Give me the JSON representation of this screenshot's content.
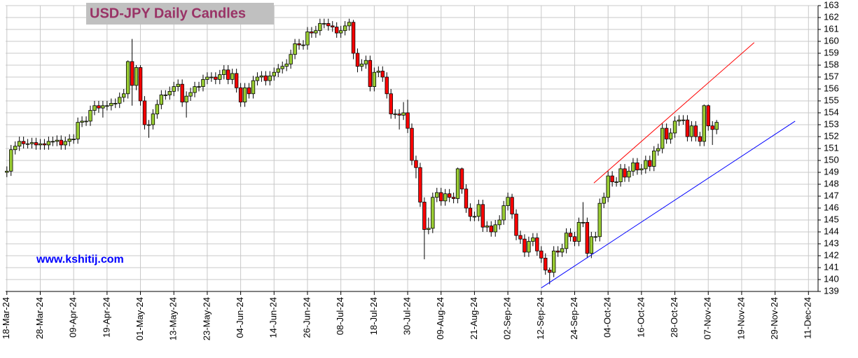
{
  "chart_data": {
    "type": "candlestick",
    "title": "USD-JPY Daily Candles",
    "watermark": "www.kshitij.com",
    "up_color": "#99cc33",
    "down_color": "#ff0000",
    "grid": true,
    "xlim": [
      -0.3,
      194.3
    ],
    "ylim": [
      139,
      163
    ],
    "yticks": [
      139,
      140,
      141,
      142,
      143,
      144,
      145,
      146,
      147,
      148,
      149,
      150,
      151,
      152,
      153,
      154,
      155,
      156,
      157,
      158,
      159,
      160,
      161,
      162,
      163
    ],
    "xticks": [
      {
        "value": 0,
        "label": "18-Mar-24"
      },
      {
        "value": 8,
        "label": "28-Mar-24"
      },
      {
        "value": 16,
        "label": "09-Apr-24"
      },
      {
        "value": 24,
        "label": "19-Apr-24"
      },
      {
        "value": 32,
        "label": "01-May-24"
      },
      {
        "value": 40,
        "label": "13-May-24"
      },
      {
        "value": 48,
        "label": "23-May-24"
      },
      {
        "value": 56,
        "label": "04-Jun-24"
      },
      {
        "value": 64,
        "label": "14-Jun-24"
      },
      {
        "value": 72,
        "label": "26-Jun-24"
      },
      {
        "value": 80,
        "label": "08-Jul-24"
      },
      {
        "value": 88,
        "label": "18-Jul-24"
      },
      {
        "value": 96,
        "label": "30-Jul-24"
      },
      {
        "value": 104,
        "label": "09-Aug-24"
      },
      {
        "value": 112,
        "label": "21-Aug-24"
      },
      {
        "value": 120,
        "label": "02-Sep-24"
      },
      {
        "value": 128,
        "label": "12-Sep-24"
      },
      {
        "value": 136,
        "label": "24-Sep-24"
      },
      {
        "value": 144,
        "label": "04-Oct-24"
      },
      {
        "value": 152,
        "label": "16-Oct-24"
      },
      {
        "value": 160,
        "label": "28-Oct-24"
      },
      {
        "value": 168,
        "label": "07-Nov-24"
      },
      {
        "value": 176,
        "label": "19-Nov-24"
      },
      {
        "value": 184,
        "label": "29-Nov-24"
      },
      {
        "value": 192,
        "label": "11-Dec-24"
      }
    ],
    "trendlines": [
      {
        "color": "#ff0000",
        "x": [
          140.6,
          179.0
        ],
        "y": [
          148.1,
          159.9
        ]
      },
      {
        "color": "#0000ff",
        "x": [
          128.0,
          188.8
        ],
        "y": [
          139.3,
          153.3
        ]
      }
    ],
    "ohlc": [
      [
        149.0,
        149.5,
        148.6,
        149.1
      ],
      [
        149.1,
        151.3,
        148.7,
        150.9
      ],
      [
        150.9,
        151.6,
        150.5,
        151.2
      ],
      [
        151.2,
        152.0,
        150.8,
        151.6
      ],
      [
        151.6,
        152.0,
        151.0,
        151.4
      ],
      [
        151.4,
        151.8,
        151.0,
        151.4
      ],
      [
        151.4,
        151.9,
        151.0,
        151.5
      ],
      [
        151.5,
        151.9,
        150.9,
        151.3
      ],
      [
        151.3,
        151.8,
        150.9,
        151.4
      ],
      [
        151.4,
        151.8,
        150.9,
        151.3
      ],
      [
        151.3,
        152.0,
        150.9,
        151.6
      ],
      [
        151.6,
        152.0,
        151.2,
        151.6
      ],
      [
        151.6,
        152.1,
        151.2,
        151.7
      ],
      [
        151.7,
        152.1,
        150.9,
        151.3
      ],
      [
        151.3,
        152.0,
        150.9,
        151.6
      ],
      [
        151.6,
        152.2,
        151.2,
        151.8
      ],
      [
        151.8,
        152.2,
        151.4,
        151.8
      ],
      [
        151.8,
        153.6,
        151.4,
        153.2
      ],
      [
        153.2,
        153.7,
        152.8,
        153.3
      ],
      [
        153.3,
        153.7,
        152.9,
        153.3
      ],
      [
        153.3,
        154.6,
        152.9,
        154.2
      ],
      [
        154.2,
        155.0,
        153.8,
        154.6
      ],
      [
        154.6,
        155.0,
        154.0,
        154.4
      ],
      [
        154.4,
        155.0,
        153.6,
        154.6
      ],
      [
        154.6,
        155.0,
        154.2,
        154.6
      ],
      [
        154.6,
        155.2,
        154.2,
        154.8
      ],
      [
        154.8,
        155.2,
        154.4,
        154.8
      ],
      [
        154.8,
        155.7,
        154.4,
        155.3
      ],
      [
        155.3,
        156.0,
        154.9,
        155.6
      ],
      [
        155.6,
        158.4,
        155.2,
        158.3
      ],
      [
        158.3,
        160.2,
        154.6,
        156.3
      ],
      [
        156.3,
        158.0,
        155.9,
        157.8
      ],
      [
        157.8,
        158.0,
        154.6,
        155.0
      ],
      [
        155.0,
        155.4,
        152.6,
        153.0
      ],
      [
        153.0,
        153.4,
        151.9,
        153.0
      ],
      [
        153.0,
        154.3,
        152.6,
        153.9
      ],
      [
        153.9,
        155.1,
        153.5,
        154.7
      ],
      [
        154.7,
        155.9,
        154.3,
        155.5
      ],
      [
        155.5,
        155.9,
        155.1,
        155.5
      ],
      [
        155.5,
        156.2,
        155.1,
        155.8
      ],
      [
        155.8,
        156.6,
        155.4,
        156.2
      ],
      [
        156.2,
        156.8,
        155.8,
        156.4
      ],
      [
        156.4,
        156.8,
        154.5,
        154.9
      ],
      [
        154.9,
        155.8,
        153.6,
        155.4
      ],
      [
        155.4,
        156.1,
        155.0,
        155.7
      ],
      [
        155.7,
        156.6,
        155.3,
        156.2
      ],
      [
        156.2,
        156.6,
        155.8,
        156.2
      ],
      [
        156.2,
        157.2,
        155.8,
        156.8
      ],
      [
        156.8,
        157.4,
        156.4,
        157.0
      ],
      [
        157.0,
        157.4,
        156.6,
        157.0
      ],
      [
        157.0,
        157.4,
        156.4,
        156.8
      ],
      [
        156.8,
        157.6,
        156.4,
        157.2
      ],
      [
        157.2,
        158.0,
        156.8,
        157.6
      ],
      [
        157.6,
        158.0,
        156.4,
        156.8
      ],
      [
        156.8,
        157.7,
        156.4,
        157.3
      ],
      [
        157.3,
        157.7,
        155.7,
        156.1
      ],
      [
        156.1,
        156.5,
        154.5,
        154.9
      ],
      [
        154.9,
        156.5,
        154.5,
        156.1
      ],
      [
        156.1,
        156.5,
        155.2,
        155.6
      ],
      [
        155.6,
        157.1,
        155.2,
        156.7
      ],
      [
        156.7,
        157.4,
        156.3,
        157.0
      ],
      [
        157.0,
        157.5,
        156.6,
        157.1
      ],
      [
        157.1,
        157.5,
        156.3,
        156.7
      ],
      [
        156.7,
        157.5,
        156.3,
        157.1
      ],
      [
        157.1,
        157.8,
        156.7,
        157.4
      ],
      [
        157.4,
        158.1,
        157.0,
        157.7
      ],
      [
        157.7,
        158.3,
        157.3,
        157.9
      ],
      [
        157.9,
        158.5,
        157.5,
        158.1
      ],
      [
        158.1,
        159.3,
        157.7,
        158.9
      ],
      [
        158.9,
        160.2,
        158.5,
        159.8
      ],
      [
        159.8,
        160.2,
        159.3,
        159.7
      ],
      [
        159.7,
        160.1,
        159.3,
        159.7
      ],
      [
        159.7,
        161.2,
        159.3,
        160.8
      ],
      [
        160.8,
        161.2,
        160.3,
        160.7
      ],
      [
        160.7,
        161.3,
        160.3,
        160.9
      ],
      [
        160.9,
        161.9,
        160.5,
        161.5
      ],
      [
        161.5,
        161.9,
        161.1,
        161.5
      ],
      [
        161.5,
        161.9,
        160.9,
        161.3
      ],
      [
        161.3,
        161.7,
        160.8,
        161.2
      ],
      [
        161.2,
        161.6,
        160.3,
        160.7
      ],
      [
        160.7,
        161.3,
        160.3,
        160.9
      ],
      [
        160.9,
        161.7,
        160.5,
        161.3
      ],
      [
        161.3,
        161.9,
        160.9,
        161.6
      ],
      [
        161.6,
        161.8,
        158.5,
        159.0
      ],
      [
        159.0,
        159.4,
        157.4,
        157.9
      ],
      [
        157.9,
        158.5,
        157.5,
        158.1
      ],
      [
        158.1,
        158.8,
        157.7,
        158.4
      ],
      [
        158.4,
        158.8,
        155.8,
        156.2
      ],
      [
        156.2,
        157.8,
        155.8,
        157.4
      ],
      [
        157.4,
        157.9,
        157.0,
        157.5
      ],
      [
        157.5,
        157.9,
        156.6,
        157.0
      ],
      [
        157.0,
        157.4,
        155.2,
        155.6
      ],
      [
        155.6,
        156.0,
        153.5,
        153.9
      ],
      [
        153.9,
        154.3,
        153.5,
        153.9
      ],
      [
        153.9,
        154.3,
        152.6,
        153.8
      ],
      [
        153.8,
        154.9,
        153.4,
        154.0
      ],
      [
        154.0,
        155.1,
        152.3,
        152.7
      ],
      [
        152.7,
        153.1,
        149.6,
        150.0
      ],
      [
        150.0,
        150.4,
        148.5,
        149.4
      ],
      [
        149.4,
        149.8,
        146.1,
        146.5
      ],
      [
        146.5,
        146.9,
        141.7,
        144.2
      ],
      [
        144.2,
        145.2,
        143.8,
        144.3
      ],
      [
        144.3,
        147.3,
        143.9,
        146.9
      ],
      [
        146.9,
        147.7,
        146.5,
        147.3
      ],
      [
        147.3,
        147.7,
        146.2,
        146.6
      ],
      [
        146.6,
        147.6,
        146.2,
        147.2
      ],
      [
        147.2,
        147.6,
        146.5,
        146.9
      ],
      [
        146.9,
        147.3,
        146.4,
        146.8
      ],
      [
        146.8,
        149.4,
        146.4,
        149.3
      ],
      [
        149.3,
        149.4,
        147.2,
        147.6
      ],
      [
        147.6,
        148.0,
        145.6,
        146.0
      ],
      [
        146.0,
        146.4,
        144.9,
        145.3
      ],
      [
        145.3,
        145.7,
        144.9,
        145.3
      ],
      [
        145.3,
        146.7,
        144.9,
        146.3
      ],
      [
        146.3,
        146.7,
        144.0,
        144.4
      ],
      [
        144.4,
        144.9,
        144.0,
        144.5
      ],
      [
        144.5,
        144.9,
        143.6,
        144.0
      ],
      [
        144.0,
        145.0,
        143.6,
        144.6
      ],
      [
        144.6,
        145.4,
        144.2,
        145.0
      ],
      [
        145.0,
        146.6,
        144.6,
        146.2
      ],
      [
        146.2,
        147.3,
        145.8,
        146.9
      ],
      [
        146.9,
        147.2,
        145.1,
        145.5
      ],
      [
        145.5,
        145.9,
        143.3,
        143.7
      ],
      [
        143.7,
        144.1,
        143.0,
        143.4
      ],
      [
        143.4,
        143.8,
        141.9,
        142.3
      ],
      [
        142.3,
        143.6,
        141.9,
        143.2
      ],
      [
        143.2,
        143.9,
        142.8,
        143.5
      ],
      [
        143.5,
        143.9,
        142.0,
        142.4
      ],
      [
        142.4,
        142.8,
        141.4,
        141.8
      ],
      [
        141.8,
        142.2,
        140.4,
        140.8
      ],
      [
        140.8,
        141.0,
        139.6,
        140.6
      ],
      [
        140.6,
        142.8,
        140.2,
        142.4
      ],
      [
        142.4,
        142.8,
        141.9,
        142.3
      ],
      [
        142.3,
        143.0,
        141.9,
        142.6
      ],
      [
        142.6,
        144.3,
        142.2,
        143.9
      ],
      [
        143.9,
        144.3,
        143.2,
        143.6
      ],
      [
        143.6,
        144.0,
        142.8,
        143.2
      ],
      [
        143.2,
        145.2,
        142.8,
        144.8
      ],
      [
        144.8,
        146.5,
        144.4,
        144.8
      ],
      [
        144.8,
        145.2,
        141.8,
        142.2
      ],
      [
        142.2,
        144.0,
        141.8,
        143.6
      ],
      [
        143.6,
        144.0,
        143.2,
        143.6
      ],
      [
        143.6,
        146.8,
        143.2,
        146.4
      ],
      [
        146.4,
        147.3,
        146.0,
        146.9
      ],
      [
        146.9,
        149.1,
        146.5,
        148.7
      ],
      [
        148.7,
        149.1,
        147.8,
        148.2
      ],
      [
        148.2,
        148.6,
        147.8,
        148.2
      ],
      [
        148.2,
        149.7,
        147.8,
        149.3
      ],
      [
        149.3,
        149.7,
        148.2,
        148.6
      ],
      [
        148.6,
        149.5,
        148.2,
        149.1
      ],
      [
        149.1,
        150.2,
        148.7,
        149.8
      ],
      [
        149.8,
        150.2,
        148.8,
        149.2
      ],
      [
        149.2,
        149.7,
        148.8,
        149.3
      ],
      [
        149.3,
        150.4,
        148.9,
        150.0
      ],
      [
        150.0,
        150.4,
        149.1,
        149.5
      ],
      [
        149.5,
        151.2,
        149.1,
        150.8
      ],
      [
        150.8,
        151.4,
        150.4,
        151.0
      ],
      [
        151.0,
        153.1,
        150.6,
        152.7
      ],
      [
        152.7,
        153.1,
        151.4,
        151.8
      ],
      [
        151.8,
        152.7,
        151.4,
        152.3
      ],
      [
        152.3,
        153.7,
        151.9,
        153.3
      ],
      [
        153.3,
        153.8,
        152.9,
        153.4
      ],
      [
        153.4,
        153.8,
        153.0,
        153.4
      ],
      [
        153.4,
        153.8,
        151.6,
        152.0
      ],
      [
        152.0,
        153.3,
        151.6,
        152.9
      ],
      [
        152.9,
        153.3,
        151.6,
        152.0
      ],
      [
        152.0,
        152.4,
        151.2,
        151.6
      ],
      [
        151.6,
        154.7,
        151.2,
        154.6
      ],
      [
        154.6,
        154.7,
        152.5,
        152.9
      ],
      [
        152.9,
        153.3,
        151.3,
        152.6
      ],
      [
        152.6,
        153.4,
        152.2,
        153.2
      ]
    ]
  }
}
